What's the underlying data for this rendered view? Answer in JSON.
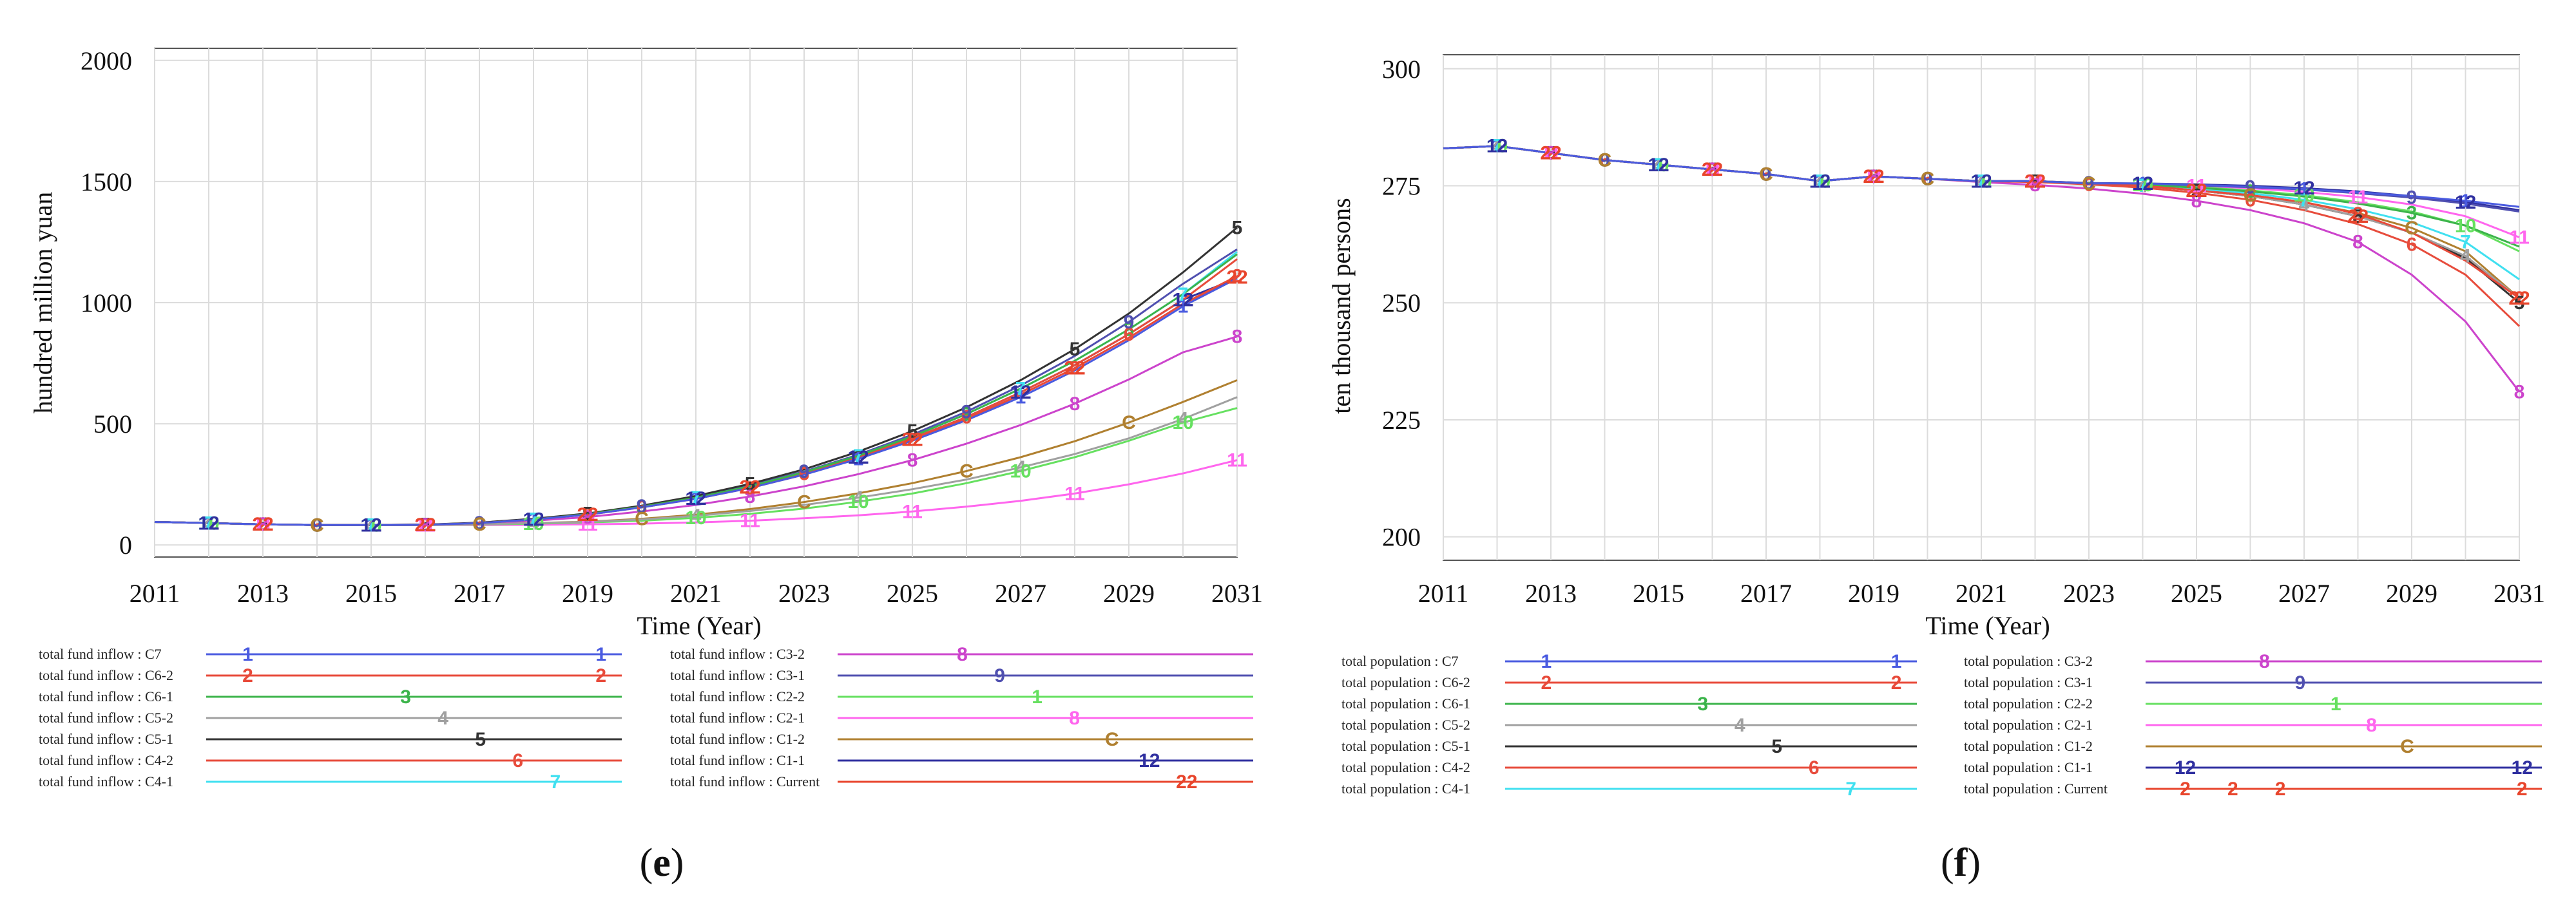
{
  "colors": {
    "C7": "#4a5be0",
    "C6-2": "#e84a3a",
    "C6-1": "#3cb44b",
    "C5-2": "#a0a0a0",
    "C5-1": "#333333",
    "C4-2": "#e74c3c",
    "C4-1": "#40e0f0",
    "C3-2": "#cc44cc",
    "C3-1": "#5050b0",
    "C2-2": "#66e060",
    "C2-1": "#ff66ee",
    "C1-2": "#b08030",
    "C1-1": "#3030a0",
    "Current": "#e8452c"
  },
  "chart_data": [
    {
      "panel_label_prefix": "(",
      "panel_letter": "e",
      "panel_label_suffix": ")",
      "type": "line",
      "xlabel": "Time (Year)",
      "ylabel": "hundred million yuan",
      "x_ticks": [
        "2011",
        "2013",
        "2015",
        "2017",
        "2019",
        "2021",
        "2023",
        "2025",
        "2027",
        "2029",
        "2031"
      ],
      "y_ticks": [
        "0",
        "500",
        "1000",
        "1500",
        "2000"
      ],
      "xlim": [
        2011,
        2031
      ],
      "ylim": [
        -50,
        2050
      ],
      "x": [
        2011,
        2012,
        2013,
        2014,
        2015,
        2016,
        2017,
        2018,
        2019,
        2020,
        2021,
        2022,
        2023,
        2024,
        2025,
        2026,
        2027,
        2028,
        2029,
        2030,
        2031
      ],
      "legend_prefix": "total fund inflow : ",
      "series": [
        {
          "key": "C7",
          "name": "C7",
          "marker": "1",
          "values": [
            95,
            90,
            85,
            82,
            82,
            83,
            90,
            105,
            125,
            155,
            190,
            235,
            290,
            355,
            430,
            515,
            610,
            720,
            845,
            985,
            1100
          ]
        },
        {
          "key": "C6-2",
          "name": "C6-2",
          "marker": "2",
          "values": [
            95,
            90,
            85,
            82,
            82,
            83,
            90,
            105,
            125,
            155,
            190,
            235,
            290,
            360,
            435,
            520,
            620,
            730,
            855,
            995,
            1110
          ]
        },
        {
          "key": "C6-1",
          "name": "C6-1",
          "marker": "3",
          "values": [
            95,
            90,
            85,
            82,
            82,
            83,
            90,
            105,
            127,
            158,
            195,
            242,
            300,
            368,
            448,
            540,
            645,
            760,
            890,
            1035,
            1200
          ]
        },
        {
          "key": "C5-2",
          "name": "C5-2",
          "marker": "4",
          "values": [
            95,
            90,
            85,
            82,
            82,
            82,
            85,
            90,
            95,
            105,
            120,
            140,
            165,
            195,
            230,
            270,
            320,
            375,
            440,
            520,
            610
          ]
        },
        {
          "key": "C5-1",
          "name": "C5-1",
          "marker": "5",
          "values": [
            95,
            90,
            85,
            82,
            82,
            84,
            92,
            108,
            130,
            162,
            202,
            252,
            312,
            385,
            470,
            568,
            680,
            808,
            955,
            1125,
            1310
          ]
        },
        {
          "key": "C4-2",
          "name": "C4-2",
          "marker": "6",
          "values": [
            95,
            90,
            85,
            82,
            82,
            83,
            90,
            105,
            126,
            156,
            192,
            238,
            294,
            362,
            440,
            528,
            630,
            742,
            870,
            1012,
            1180
          ]
        },
        {
          "key": "C4-1",
          "name": "C4-1",
          "marker": "7",
          "values": [
            95,
            90,
            85,
            82,
            82,
            83,
            90,
            105,
            127,
            158,
            195,
            242,
            300,
            368,
            448,
            540,
            645,
            760,
            890,
            1035,
            1210
          ]
        },
        {
          "key": "C3-2",
          "name": "C3-2",
          "marker": "8",
          "values": [
            95,
            90,
            85,
            82,
            82,
            83,
            88,
            100,
            115,
            138,
            165,
            200,
            242,
            292,
            350,
            418,
            495,
            583,
            683,
            795,
            860
          ]
        },
        {
          "key": "C3-1",
          "name": "C3-1",
          "marker": "9",
          "values": [
            95,
            90,
            85,
            82,
            82,
            84,
            91,
            106,
            128,
            160,
            198,
            245,
            303,
            372,
            455,
            550,
            658,
            780,
            920,
            1078,
            1220
          ]
        },
        {
          "key": "C2-2",
          "name": "C2-2",
          "marker": "10",
          "values": [
            95,
            90,
            85,
            82,
            82,
            82,
            84,
            88,
            93,
            100,
            112,
            128,
            150,
            178,
            212,
            255,
            305,
            362,
            430,
            505,
            565
          ]
        },
        {
          "key": "C2-1",
          "name": "C2-1",
          "marker": "11",
          "values": [
            95,
            90,
            85,
            82,
            82,
            82,
            82,
            83,
            85,
            88,
            93,
            100,
            110,
            122,
            138,
            158,
            182,
            212,
            250,
            295,
            350
          ]
        },
        {
          "key": "C1-2",
          "name": "C1-2",
          "marker": "C",
          "values": [
            95,
            90,
            85,
            82,
            82,
            82,
            85,
            90,
            96,
            108,
            125,
            148,
            177,
            213,
            255,
            305,
            362,
            428,
            505,
            590,
            680
          ]
        },
        {
          "key": "C1-1",
          "name": "C1-1",
          "marker": "12",
          "values": [
            95,
            90,
            85,
            82,
            82,
            83,
            90,
            105,
            126,
            156,
            192,
            238,
            294,
            362,
            440,
            528,
            630,
            742,
            870,
            1012,
            1100
          ]
        },
        {
          "key": "Current",
          "name": "Current",
          "marker": "22",
          "values": [
            95,
            90,
            85,
            82,
            82,
            83,
            90,
            105,
            126,
            156,
            192,
            238,
            294,
            360,
            435,
            520,
            620,
            730,
            855,
            995,
            1105
          ]
        }
      ],
      "legend_markers": {
        "C7": [
          "1",
          "1"
        ],
        "C6-2": [
          "2",
          "2"
        ],
        "C6-1": [
          "3"
        ],
        "C5-2": [
          "4"
        ],
        "C5-1": [
          "5"
        ],
        "C4-2": [
          "6"
        ],
        "C4-1": [
          "7"
        ],
        "C3-2": [
          "8"
        ],
        "C3-1": [
          "9"
        ],
        "C2-2": [
          "1"
        ],
        "C2-1": [
          "8"
        ],
        "C1-2": [
          "C"
        ],
        "C1-1": [
          "12"
        ],
        "Current": [
          "22"
        ]
      }
    },
    {
      "panel_label_prefix": "(",
      "panel_letter": "f",
      "panel_label_suffix": ")",
      "type": "line",
      "xlabel": "Time (Year)",
      "ylabel": "ten thousand persons",
      "x_ticks": [
        "2011",
        "2013",
        "2015",
        "2017",
        "2019",
        "2021",
        "2023",
        "2025",
        "2027",
        "2029",
        "2031"
      ],
      "y_ticks": [
        "200",
        "225",
        "250",
        "275",
        "300"
      ],
      "xlim": [
        2011,
        2031
      ],
      "ylim": [
        195,
        303
      ],
      "x": [
        2011,
        2012,
        2013,
        2014,
        2015,
        2016,
        2017,
        2018,
        2019,
        2020,
        2021,
        2022,
        2023,
        2024,
        2025,
        2026,
        2027,
        2028,
        2029,
        2030,
        2031
      ],
      "legend_prefix": "total population : ",
      "series": [
        {
          "key": "C7",
          "name": "C7",
          "marker": "1",
          "values": [
            283,
            283.5,
            282,
            280.5,
            279.5,
            278.5,
            277.5,
            276,
            277,
            276.5,
            276,
            276,
            275.5,
            275.5,
            275.2,
            274.8,
            274.3,
            273.6,
            272.8,
            271.8,
            270.5
          ]
        },
        {
          "key": "C6-2",
          "name": "C6-2",
          "marker": "2",
          "values": [
            283,
            283.5,
            282,
            280.5,
            279.5,
            278.5,
            277.5,
            276,
            277,
            276.5,
            276,
            276,
            275.5,
            275,
            274,
            273,
            271.5,
            269,
            265,
            259,
            251
          ]
        },
        {
          "key": "C6-1",
          "name": "C6-1",
          "marker": "3",
          "values": [
            283,
            283.5,
            282,
            280.5,
            279.5,
            278.5,
            277.5,
            276,
            277,
            276.5,
            276,
            276,
            275.5,
            275.2,
            274.6,
            273.8,
            272.7,
            271.2,
            269.2,
            266.5,
            262
          ]
        },
        {
          "key": "C5-2",
          "name": "C5-2",
          "marker": "4",
          "values": [
            283,
            283.5,
            282,
            280.5,
            279.5,
            278.5,
            277.5,
            276,
            277,
            276.5,
            276,
            276,
            275.5,
            275,
            274,
            272.8,
            271,
            268.5,
            265,
            260,
            251
          ]
        },
        {
          "key": "C5-1",
          "name": "C5-1",
          "marker": "5",
          "values": [
            283,
            283.5,
            282,
            280.5,
            279.5,
            278.5,
            277.5,
            276,
            277,
            276.5,
            276,
            276,
            275.5,
            275,
            274,
            272.8,
            271,
            268.5,
            265,
            259.5,
            250
          ]
        },
        {
          "key": "C4-2",
          "name": "C4-2",
          "marker": "6",
          "values": [
            283,
            283.5,
            282,
            280.5,
            279.5,
            278.5,
            277.5,
            276,
            277,
            276.5,
            276,
            275.8,
            275.3,
            274.6,
            273.5,
            272,
            269.8,
            266.8,
            262.5,
            256,
            245
          ]
        },
        {
          "key": "C4-1",
          "name": "C4-1",
          "marker": "7",
          "values": [
            283,
            283.5,
            282,
            280.5,
            279.5,
            278.5,
            277.5,
            276,
            277,
            276.5,
            276,
            276,
            275.5,
            275.1,
            274.4,
            273.4,
            272,
            270,
            267.2,
            263,
            255
          ]
        },
        {
          "key": "C3-2",
          "name": "C3-2",
          "marker": "8",
          "values": [
            283,
            283.5,
            282,
            280.5,
            279.5,
            278.5,
            277.5,
            276,
            277,
            276.5,
            275.8,
            275.2,
            274.4,
            273.3,
            271.8,
            269.8,
            267,
            263,
            256,
            246,
            231
          ]
        },
        {
          "key": "C3-1",
          "name": "C3-1",
          "marker": "9",
          "values": [
            283,
            283.5,
            282,
            280.5,
            279.5,
            278.5,
            277.5,
            276,
            277,
            276.5,
            276,
            276,
            275.6,
            275.4,
            275.1,
            274.7,
            274.2,
            273.4,
            272.5,
            271.2,
            269.5
          ]
        },
        {
          "key": "C2-2",
          "name": "C2-2",
          "marker": "10",
          "values": [
            283,
            283.5,
            282,
            280.5,
            279.5,
            278.5,
            277.5,
            276,
            277,
            276.5,
            276,
            276,
            275.5,
            275.2,
            274.7,
            274,
            273,
            271.5,
            269.5,
            266.5,
            261
          ]
        },
        {
          "key": "C2-1",
          "name": "C2-1",
          "marker": "11",
          "values": [
            283,
            283.5,
            282,
            280.5,
            279.5,
            278.5,
            277.5,
            276,
            277,
            276.5,
            276,
            276,
            275.5,
            275.3,
            275,
            274.5,
            273.7,
            272.6,
            271,
            268.5,
            264
          ]
        },
        {
          "key": "C1-2",
          "name": "C1-2",
          "marker": "C",
          "values": [
            283,
            283.5,
            282,
            280.5,
            279.5,
            278.5,
            277.5,
            276,
            277,
            276.5,
            276,
            276,
            275.5,
            275,
            274.2,
            273,
            271.5,
            269.2,
            266,
            261,
            251
          ]
        },
        {
          "key": "C1-1",
          "name": "C1-1",
          "marker": "12",
          "values": [
            283,
            283.5,
            282,
            280.5,
            279.5,
            278.5,
            277.5,
            276,
            277,
            276.5,
            276,
            276,
            275.6,
            275.5,
            275.3,
            275,
            274.5,
            273.8,
            272.8,
            271.5,
            269.8
          ]
        },
        {
          "key": "Current",
          "name": "Current",
          "marker": "22",
          "values": [
            283,
            283.5,
            282,
            280.5,
            279.5,
            278.5,
            277.5,
            276,
            277,
            276.5,
            276,
            276,
            275.5,
            275,
            274,
            272.8,
            271,
            268.5,
            265,
            259.5,
            251
          ]
        }
      ],
      "legend_markers": {
        "C7": [
          "1",
          "1"
        ],
        "C6-2": [
          "2",
          "2"
        ],
        "C6-1": [
          "3"
        ],
        "C5-2": [
          "4"
        ],
        "C5-1": [
          "5"
        ],
        "C4-2": [
          "6"
        ],
        "C4-1": [
          "7"
        ],
        "C3-2": [
          "8"
        ],
        "C3-1": [
          "9"
        ],
        "C2-2": [
          "1"
        ],
        "C2-1": [
          "8"
        ],
        "C1-2": [
          "C"
        ],
        "C1-1": [
          "12",
          "12"
        ],
        "Current": [
          "2",
          "2",
          "2",
          "2"
        ]
      }
    }
  ]
}
